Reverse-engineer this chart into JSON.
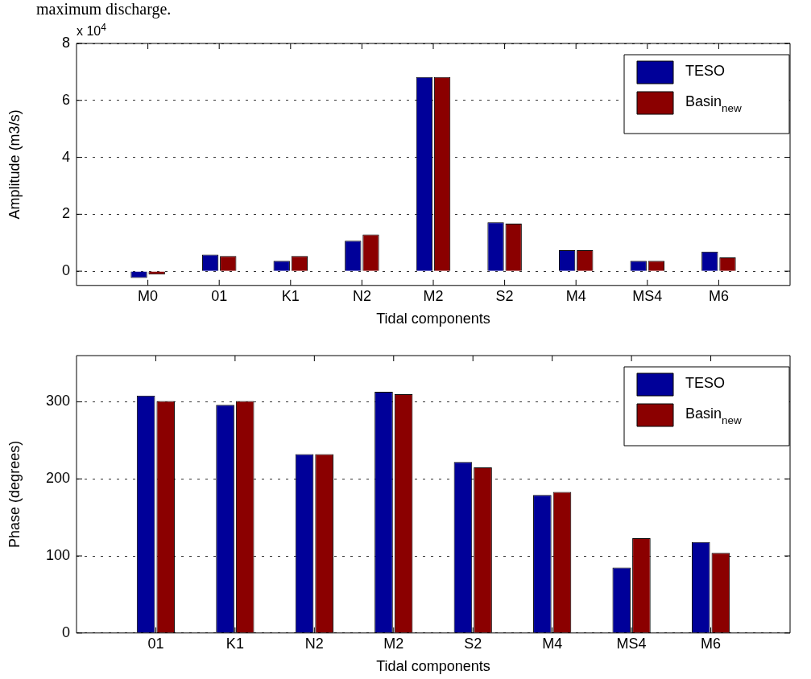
{
  "chart_data": [
    {
      "type": "bar",
      "annotations": [
        "maximum discharge.",
        "x 10$^{4}$"
      ],
      "xlabel": "Tidal components",
      "ylabel": "Amplitude (m3/s)",
      "categories": [
        "M0",
        "01",
        "K1",
        "N2",
        "M2",
        "S2",
        "M4",
        "MS4",
        "M6"
      ],
      "series": [
        {
          "name": "TESO",
          "color": "#000099",
          "values": [
            -0.24,
            0.58,
            0.36,
            1.07,
            6.82,
            1.72,
            0.74,
            0.36,
            0.69
          ]
        },
        {
          "name": "Basin$_{new}$",
          "color": "#8b0000",
          "values": [
            -0.12,
            0.53,
            0.53,
            1.29,
            6.82,
            1.67,
            0.74,
            0.36,
            0.48
          ]
        }
      ],
      "ylim": [
        -0.5,
        8
      ],
      "yticks": [
        0,
        2,
        4,
        6,
        8
      ],
      "grid": "y",
      "legend": "top right"
    },
    {
      "type": "bar",
      "xlabel": "Tidal components",
      "ylabel": "Phase (degrees)",
      "categories": [
        "01",
        "K1",
        "N2",
        "M2",
        "S2",
        "M4",
        "MS4",
        "M6"
      ],
      "series": [
        {
          "name": "TESO",
          "color": "#000099",
          "values": [
            308,
            296,
            232,
            313,
            222,
            179,
            85,
            118
          ]
        },
        {
          "name": "Basin$_{new}$",
          "color": "#8b0000",
          "values": [
            301,
            301,
            232,
            310,
            215,
            183,
            123,
            104
          ]
        }
      ],
      "ylim": [
        0,
        360
      ],
      "yticks": [
        0,
        100,
        200,
        300
      ],
      "grid": "y",
      "legend": "top right"
    }
  ]
}
